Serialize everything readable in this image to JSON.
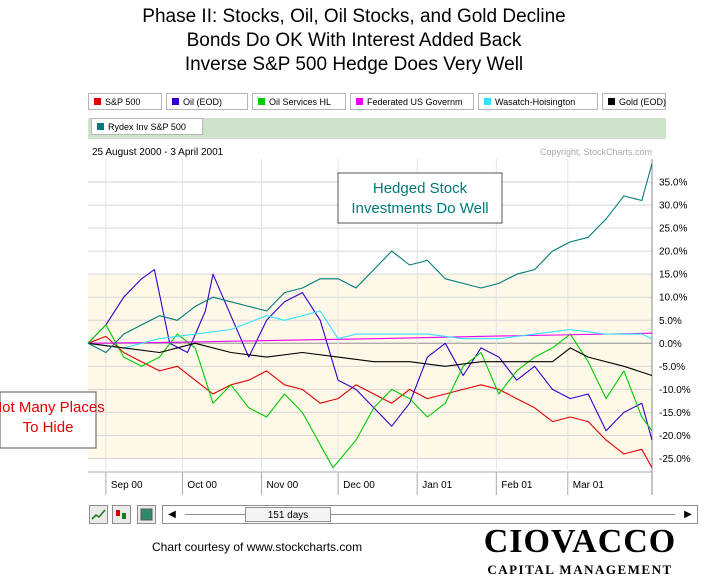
{
  "titles": [
    "Phase II:  Stocks, Oil, Oil Stocks, and Gold Decline",
    "Bonds Do OK With Interest Added Back",
    "Inverse S&P 500 Hedge Does Very Well"
  ],
  "courtesy": "Chart courtesy of www.stockcharts.com",
  "brand": {
    "name": "CIOVACCO",
    "sub": "CAPITAL MANAGEMENT"
  },
  "controls": {
    "range_label": "151 days",
    "left_arrow": "◀",
    "right_arrow": "▶"
  },
  "chart_data": {
    "type": "line",
    "date_range": "25 August 2000 - 3 April 2001",
    "copyright": "Copyright, StockCharts.com",
    "ylim": [
      -27.5,
      40
    ],
    "yticks": [
      35,
      30,
      25,
      20,
      15,
      10,
      5,
      0,
      -5,
      -10,
      -15,
      -20,
      -25
    ],
    "ytick_labels": [
      "35.0%",
      "30.0%",
      "25.0%",
      "20.0%",
      "15.0%",
      "10.0%",
      "5.0%",
      "0.0%",
      "-5.0%",
      "-10.0%",
      "-15.0%",
      "-20.0%",
      "-25.0%"
    ],
    "xtick_labels": [
      "Sep 00",
      "Oct 00",
      "Nov 00",
      "Dec 00",
      "Jan 01",
      "Feb 01",
      "Mar 01"
    ],
    "xticks": [
      "2000-09-01",
      "2000-10-01",
      "2000-11-01",
      "2000-12-01",
      "2001-01-01",
      "2001-02-01",
      "2001-03-01"
    ],
    "xlim": [
      "2000-08-25",
      "2001-04-03"
    ],
    "legend_position": "top",
    "annotations": [
      {
        "text_lines": [
          "Hedged Stock",
          "Investments Do Well"
        ],
        "color": "#007a7a"
      },
      {
        "text_lines": [
          "Not Many Places",
          "To Hide"
        ],
        "color": "#e00000"
      }
    ],
    "series": [
      {
        "name": "S&P 500",
        "color": "#e00000",
        "points": [
          [
            "2000-08-25",
            0
          ],
          [
            "2000-09-01",
            1.5
          ],
          [
            "2000-09-08",
            -2
          ],
          [
            "2000-09-15",
            -4
          ],
          [
            "2000-09-22",
            -6
          ],
          [
            "2000-09-29",
            -5
          ],
          [
            "2000-10-06",
            -8
          ],
          [
            "2000-10-13",
            -11
          ],
          [
            "2000-10-20",
            -9
          ],
          [
            "2000-10-27",
            -8
          ],
          [
            "2000-11-03",
            -6
          ],
          [
            "2000-11-10",
            -9
          ],
          [
            "2000-11-17",
            -10
          ],
          [
            "2000-11-24",
            -13
          ],
          [
            "2000-12-01",
            -12
          ],
          [
            "2000-12-08",
            -9
          ],
          [
            "2000-12-15",
            -11
          ],
          [
            "2000-12-22",
            -13
          ],
          [
            "2000-12-29",
            -10
          ],
          [
            "2001-01-05",
            -12
          ],
          [
            "2001-01-12",
            -11
          ],
          [
            "2001-01-19",
            -10
          ],
          [
            "2001-01-26",
            -9
          ],
          [
            "2001-02-02",
            -10
          ],
          [
            "2001-02-09",
            -12
          ],
          [
            "2001-02-16",
            -14
          ],
          [
            "2001-02-23",
            -17
          ],
          [
            "2001-03-02",
            -16
          ],
          [
            "2001-03-09",
            -17
          ],
          [
            "2001-03-16",
            -21
          ],
          [
            "2001-03-23",
            -24
          ],
          [
            "2001-03-30",
            -23
          ],
          [
            "2001-04-03",
            -27
          ]
        ]
      },
      {
        "name": "Oil (EOD)",
        "color": "#3300cc",
        "points": [
          [
            "2000-08-25",
            0
          ],
          [
            "2000-09-01",
            4
          ],
          [
            "2000-09-08",
            10
          ],
          [
            "2000-09-15",
            14
          ],
          [
            "2000-09-20",
            16
          ],
          [
            "2000-09-26",
            0
          ],
          [
            "2000-10-03",
            -2
          ],
          [
            "2000-10-10",
            7
          ],
          [
            "2000-10-13",
            15
          ],
          [
            "2000-10-20",
            6
          ],
          [
            "2000-10-27",
            -3
          ],
          [
            "2000-11-03",
            5
          ],
          [
            "2000-11-10",
            9
          ],
          [
            "2000-11-17",
            11
          ],
          [
            "2000-11-24",
            5
          ],
          [
            "2000-12-01",
            -8
          ],
          [
            "2000-12-08",
            -10
          ],
          [
            "2000-12-15",
            -14
          ],
          [
            "2000-12-22",
            -18
          ],
          [
            "2000-12-29",
            -13
          ],
          [
            "2001-01-05",
            -3
          ],
          [
            "2001-01-12",
            0
          ],
          [
            "2001-01-19",
            -7
          ],
          [
            "2001-01-26",
            -1
          ],
          [
            "2001-02-02",
            -3
          ],
          [
            "2001-02-09",
            -8
          ],
          [
            "2001-02-16",
            -5
          ],
          [
            "2001-02-23",
            -10
          ],
          [
            "2001-03-02",
            -12
          ],
          [
            "2001-03-09",
            -11
          ],
          [
            "2001-03-16",
            -19
          ],
          [
            "2001-03-23",
            -15
          ],
          [
            "2001-03-30",
            -13
          ],
          [
            "2001-04-03",
            -21
          ]
        ]
      },
      {
        "name": "Oil Services HL",
        "color": "#00cc00",
        "points": [
          [
            "2000-08-25",
            0
          ],
          [
            "2000-09-01",
            4
          ],
          [
            "2000-09-08",
            -3
          ],
          [
            "2000-09-15",
            -5
          ],
          [
            "2000-09-22",
            -3
          ],
          [
            "2000-09-29",
            2
          ],
          [
            "2000-10-06",
            -1
          ],
          [
            "2000-10-13",
            -13
          ],
          [
            "2000-10-20",
            -9
          ],
          [
            "2000-10-27",
            -14
          ],
          [
            "2000-11-03",
            -16
          ],
          [
            "2000-11-10",
            -11
          ],
          [
            "2000-11-17",
            -15
          ],
          [
            "2000-11-24",
            -22
          ],
          [
            "2000-11-29",
            -27
          ],
          [
            "2000-12-08",
            -21
          ],
          [
            "2000-12-15",
            -14
          ],
          [
            "2000-12-22",
            -10
          ],
          [
            "2000-12-29",
            -12
          ],
          [
            "2001-01-05",
            -16
          ],
          [
            "2001-01-12",
            -13
          ],
          [
            "2001-01-19",
            -5
          ],
          [
            "2001-01-26",
            -2
          ],
          [
            "2001-02-02",
            -11
          ],
          [
            "2001-02-09",
            -6
          ],
          [
            "2001-02-16",
            -3
          ],
          [
            "2001-02-23",
            -1
          ],
          [
            "2001-03-02",
            2
          ],
          [
            "2001-03-09",
            -4
          ],
          [
            "2001-03-16",
            -12
          ],
          [
            "2001-03-23",
            -6
          ],
          [
            "2001-03-30",
            -16
          ],
          [
            "2001-04-03",
            -19
          ]
        ]
      },
      {
        "name": "Federated US Governm",
        "color": "#ee00ee",
        "points": [
          [
            "2000-08-25",
            0
          ],
          [
            "2000-09-25",
            0.2
          ],
          [
            "2000-10-25",
            0.5
          ],
          [
            "2000-11-25",
            0.8
          ],
          [
            "2000-12-25",
            1.1
          ],
          [
            "2001-01-25",
            1.5
          ],
          [
            "2001-02-25",
            1.8
          ],
          [
            "2001-04-03",
            2.2
          ]
        ]
      },
      {
        "name": "Wasatch-Hoisington",
        "color": "#33e0ff",
        "points": [
          [
            "2000-08-25",
            0
          ],
          [
            "2000-09-08",
            -1
          ],
          [
            "2000-09-22",
            1
          ],
          [
            "2000-10-06",
            2
          ],
          [
            "2000-10-20",
            3
          ],
          [
            "2000-11-03",
            6
          ],
          [
            "2000-11-10",
            5
          ],
          [
            "2000-11-24",
            7
          ],
          [
            "2000-12-01",
            1
          ],
          [
            "2000-12-08",
            2
          ],
          [
            "2000-12-22",
            2
          ],
          [
            "2001-01-05",
            2
          ],
          [
            "2001-01-19",
            1
          ],
          [
            "2001-02-02",
            1
          ],
          [
            "2001-02-16",
            2
          ],
          [
            "2001-03-02",
            3
          ],
          [
            "2001-03-16",
            2
          ],
          [
            "2001-03-30",
            2
          ],
          [
            "2001-04-03",
            1
          ]
        ]
      },
      {
        "name": "Gold (EOD)",
        "color": "#000000",
        "points": [
          [
            "2000-08-25",
            0
          ],
          [
            "2000-09-08",
            -1
          ],
          [
            "2000-09-22",
            -2
          ],
          [
            "2000-10-06",
            0
          ],
          [
            "2000-10-20",
            -2
          ],
          [
            "2000-11-03",
            -3
          ],
          [
            "2000-11-17",
            -2
          ],
          [
            "2000-12-01",
            -3
          ],
          [
            "2000-12-15",
            -4
          ],
          [
            "2000-12-29",
            -4
          ],
          [
            "2001-01-12",
            -5
          ],
          [
            "2001-01-26",
            -4
          ],
          [
            "2001-02-09",
            -4
          ],
          [
            "2001-02-23",
            -4
          ],
          [
            "2001-03-02",
            -1
          ],
          [
            "2001-03-09",
            -3
          ],
          [
            "2001-03-23",
            -5
          ],
          [
            "2001-04-03",
            -7
          ]
        ]
      },
      {
        "name": "Rydex Inv S&P 500",
        "color": "#007a7a",
        "points": [
          [
            "2000-08-25",
            0
          ],
          [
            "2000-09-01",
            -2
          ],
          [
            "2000-09-08",
            2
          ],
          [
            "2000-09-15",
            4
          ],
          [
            "2000-09-22",
            6
          ],
          [
            "2000-09-29",
            5
          ],
          [
            "2000-10-06",
            8
          ],
          [
            "2000-10-13",
            10
          ],
          [
            "2000-10-20",
            9
          ],
          [
            "2000-10-27",
            8
          ],
          [
            "2000-11-03",
            7
          ],
          [
            "2000-11-10",
            11
          ],
          [
            "2000-11-17",
            12
          ],
          [
            "2000-11-24",
            14
          ],
          [
            "2000-12-01",
            14
          ],
          [
            "2000-12-08",
            12
          ],
          [
            "2000-12-15",
            16
          ],
          [
            "2000-12-22",
            20
          ],
          [
            "2000-12-29",
            17
          ],
          [
            "2001-01-05",
            18
          ],
          [
            "2001-01-12",
            14
          ],
          [
            "2001-01-19",
            13
          ],
          [
            "2001-01-26",
            12
          ],
          [
            "2001-02-02",
            13
          ],
          [
            "2001-02-09",
            15
          ],
          [
            "2001-02-16",
            16
          ],
          [
            "2001-02-23",
            20
          ],
          [
            "2001-03-02",
            22
          ],
          [
            "2001-03-09",
            23
          ],
          [
            "2001-03-16",
            27
          ],
          [
            "2001-03-23",
            32
          ],
          [
            "2001-03-30",
            31
          ],
          [
            "2001-04-03",
            39
          ]
        ]
      }
    ]
  }
}
